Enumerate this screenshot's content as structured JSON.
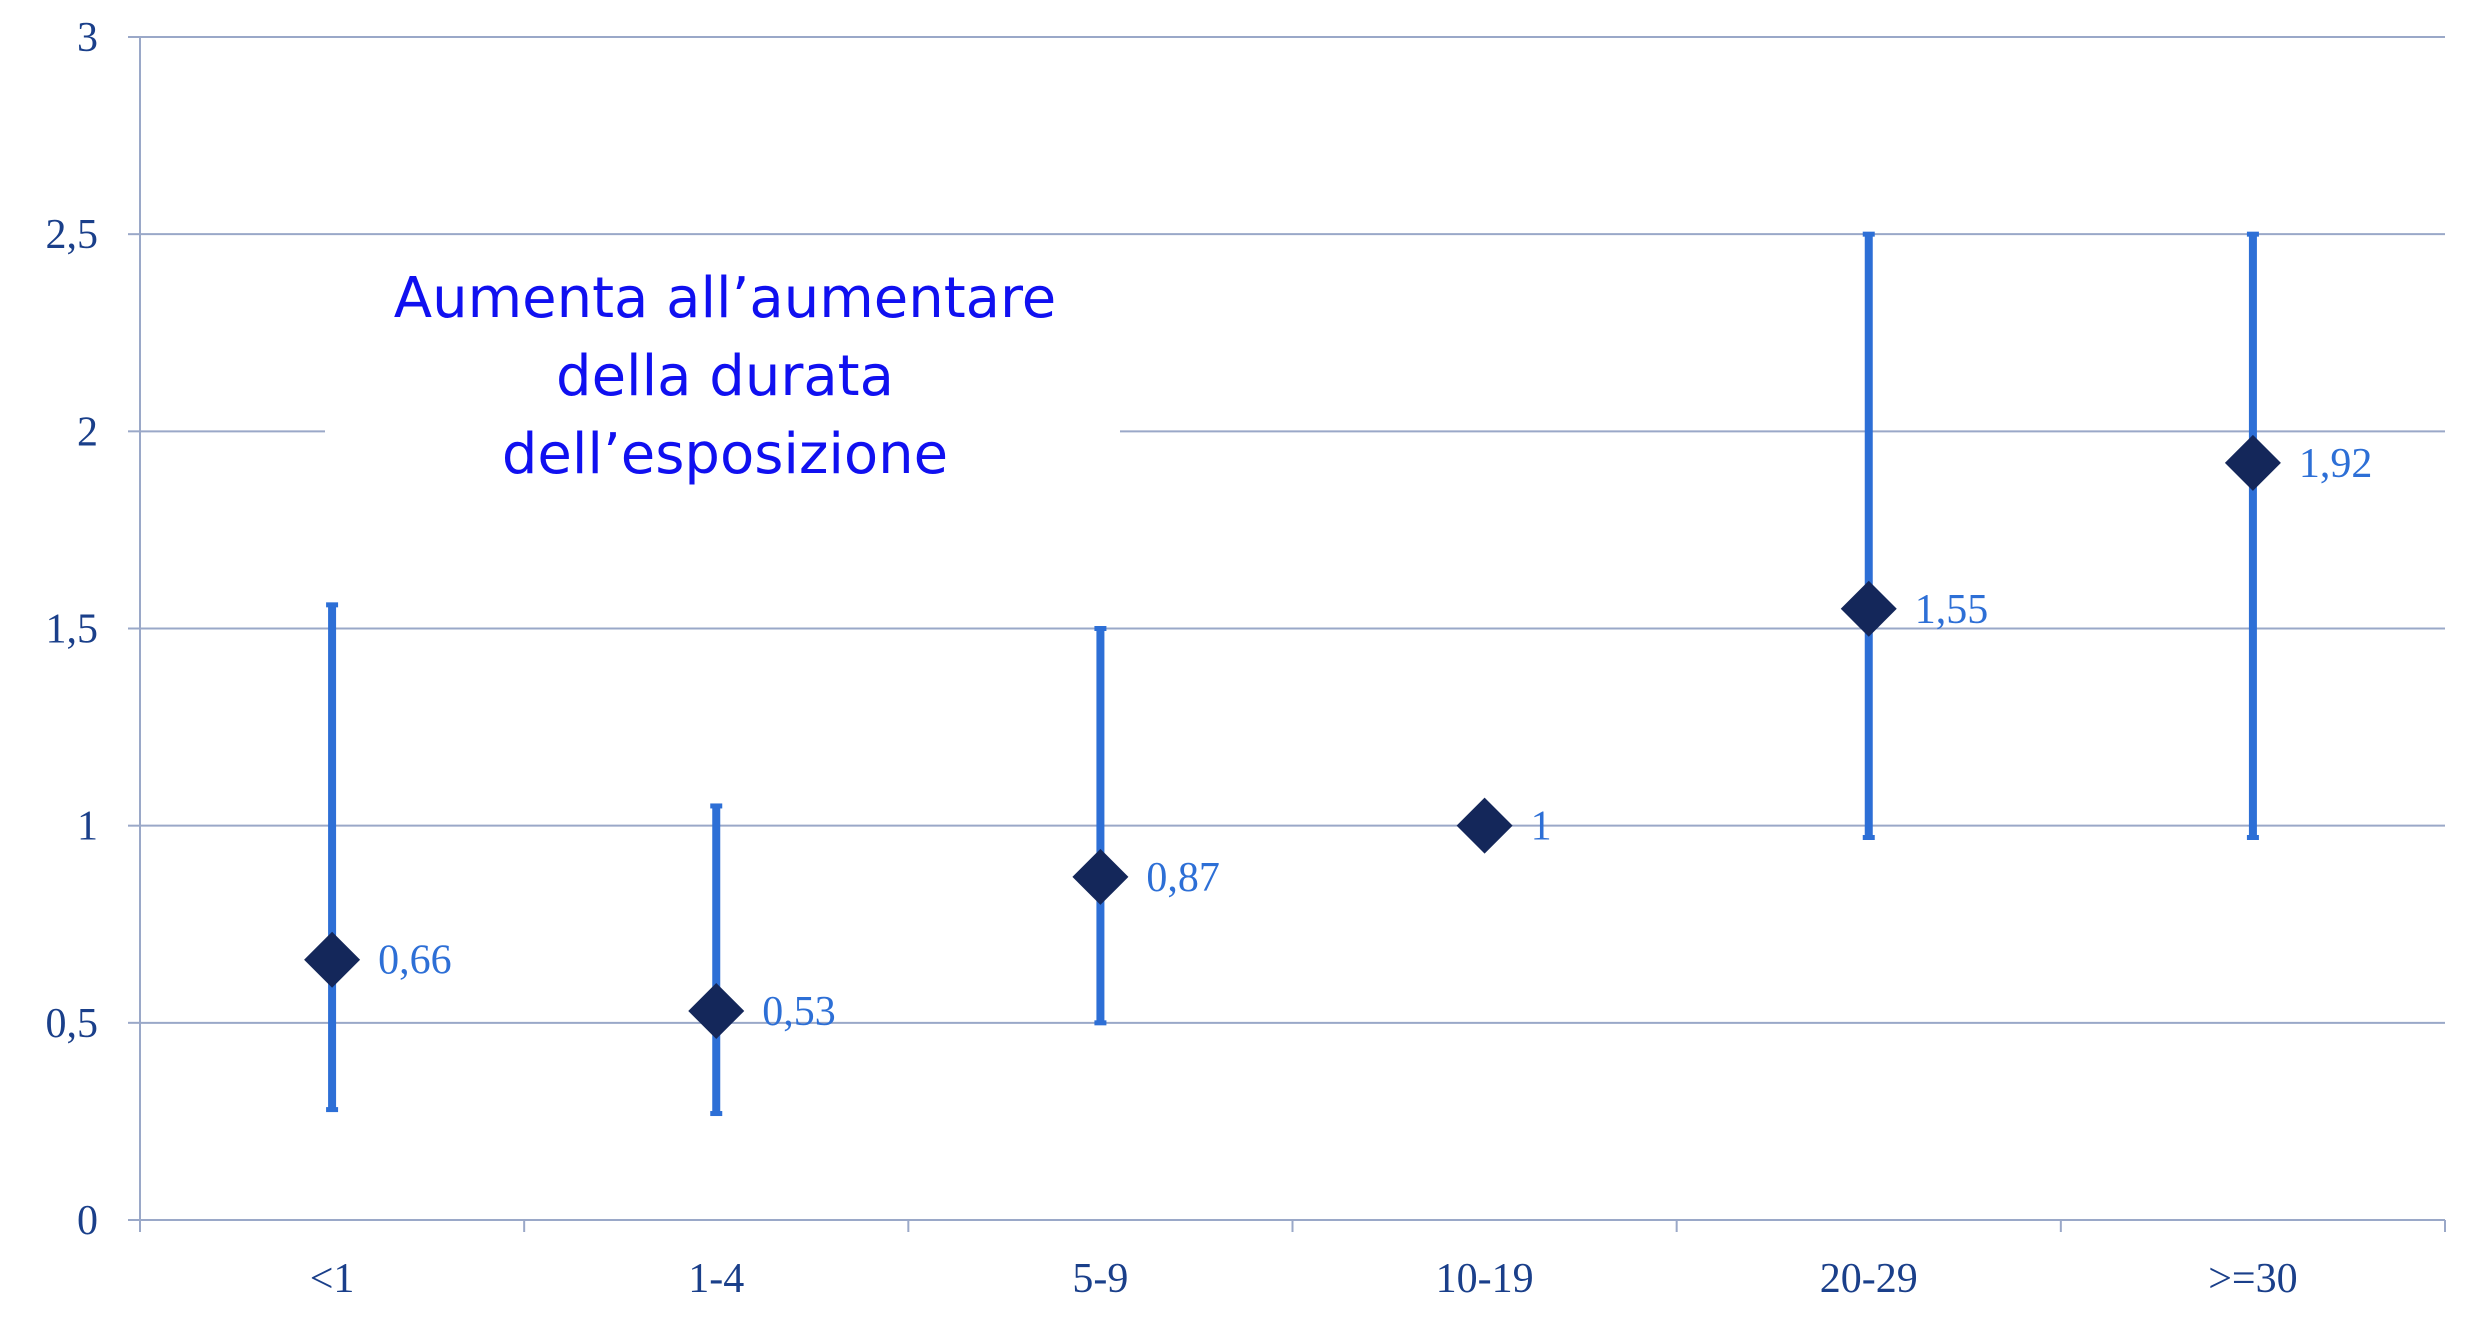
{
  "chart_data": {
    "type": "scatter",
    "categories": [
      "<1",
      "1-4",
      "5-9",
      "10-19",
      "20-29",
      ">=30"
    ],
    "series": [
      {
        "values": [
          0.66,
          0.53,
          0.87,
          1,
          1.55,
          1.92
        ],
        "value_labels": [
          "0,66",
          "0,53",
          "0,87",
          "1",
          "1,55",
          "1,92"
        ],
        "lower": [
          0.28,
          0.27,
          0.5,
          null,
          0.97,
          0.97
        ],
        "upper": [
          1.56,
          1.05,
          1.5,
          null,
          2.5,
          2.5
        ]
      }
    ],
    "ylim": [
      0,
      3
    ],
    "y_ticks": [
      0,
      0.5,
      1,
      1.5,
      2,
      2.5,
      3
    ],
    "y_tick_labels": [
      "0",
      "0,5",
      "1",
      "1,5",
      "2",
      "2,5",
      "3"
    ],
    "grid": true,
    "annotation": [
      "Aumenta all’aumentare",
      "della durata",
      "dell’esposizione"
    ],
    "colors": {
      "marker": "#14275a",
      "error_bar": "#2d6fd6",
      "grid": "#9aa8c8",
      "axis_text": "#1a3f8a",
      "data_label": "#2d6fd6",
      "annotation": "#1010f0"
    }
  }
}
